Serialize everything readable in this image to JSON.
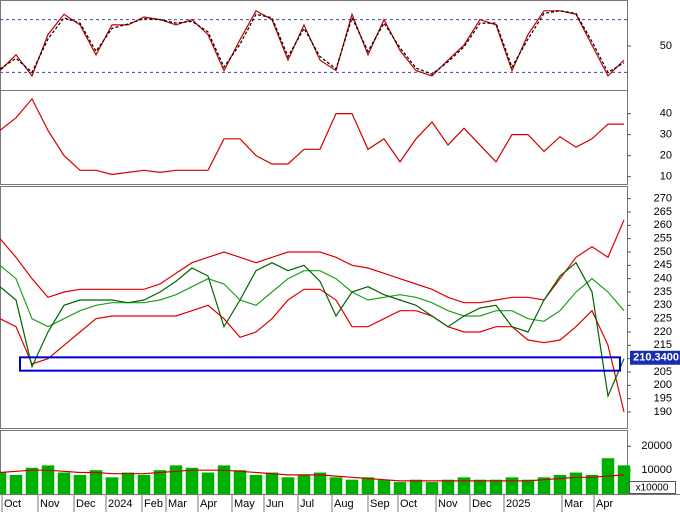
{
  "chart_data": [
    {
      "type": "line",
      "ylim": [
        0,
        100
      ],
      "yticks": [
        50
      ],
      "levels": [
        20,
        80
      ],
      "level_color": "#4444aa",
      "x": [
        0,
        4,
        8,
        12,
        16,
        20,
        24,
        28,
        32,
        36,
        40,
        44,
        48,
        52,
        56,
        60,
        64,
        68,
        72,
        76,
        80,
        84,
        88,
        92,
        96,
        100,
        104,
        108,
        112,
        116,
        120,
        124,
        128,
        132,
        136,
        140,
        144,
        148,
        152,
        156
      ],
      "series": [
        {
          "color": "#c00000",
          "values": [
            22,
            40,
            16,
            63,
            86,
            74,
            40,
            74,
            74,
            83,
            80,
            74,
            80,
            63,
            22,
            57,
            90,
            80,
            34,
            74,
            34,
            22,
            86,
            40,
            80,
            45,
            22,
            16,
            34,
            51,
            80,
            74,
            22,
            63,
            90,
            90,
            86,
            51,
            16,
            34
          ]
        },
        {
          "color": "#000000",
          "dash": true,
          "values": [
            24,
            36,
            20,
            58,
            82,
            76,
            44,
            70,
            75,
            81,
            80,
            76,
            78,
            66,
            26,
            52,
            86,
            82,
            38,
            70,
            38,
            24,
            82,
            44,
            76,
            48,
            25,
            18,
            32,
            49,
            76,
            76,
            26,
            58,
            87,
            90,
            87,
            55,
            20,
            31
          ]
        }
      ]
    },
    {
      "type": "line",
      "ylim": [
        6.5,
        50.3
      ],
      "yticks": [
        10,
        20,
        30,
        40
      ],
      "x": [
        0,
        4,
        8,
        12,
        16,
        20,
        24,
        28,
        32,
        36,
        40,
        44,
        48,
        52,
        56,
        60,
        64,
        68,
        72,
        76,
        80,
        84,
        88,
        92,
        96,
        100,
        104,
        108,
        112,
        116,
        120,
        124,
        128,
        132,
        136,
        140,
        144,
        148,
        152,
        156
      ],
      "series": [
        {
          "color": "#d00000",
          "values": [
            32,
            38,
            47,
            32,
            20,
            13,
            13,
            11,
            12,
            13,
            12,
            13,
            13,
            13,
            28,
            28,
            20,
            16,
            16,
            23,
            23,
            40,
            40,
            23,
            28,
            17,
            28,
            36,
            25,
            33,
            25,
            17,
            30,
            30,
            22,
            29,
            24,
            28,
            35,
            35
          ]
        }
      ]
    },
    {
      "type": "line",
      "ylim": [
        184,
        274
      ],
      "yticks": [
        190,
        195,
        200,
        205,
        210,
        215,
        220,
        225,
        230,
        235,
        240,
        245,
        250,
        255,
        260,
        265,
        270
      ],
      "x": [
        0,
        4,
        8,
        12,
        16,
        20,
        24,
        28,
        32,
        36,
        40,
        44,
        48,
        52,
        56,
        60,
        64,
        68,
        72,
        76,
        80,
        84,
        88,
        92,
        96,
        100,
        104,
        108,
        112,
        116,
        120,
        124,
        128,
        132,
        136,
        140,
        144,
        148,
        152,
        156
      ],
      "series": [
        {
          "color": "#e00000",
          "values": [
            255,
            248,
            240,
            233,
            235,
            236,
            236,
            236,
            236,
            236,
            238,
            242,
            246,
            248,
            250,
            248,
            246,
            248,
            250,
            250,
            250,
            248,
            245,
            244,
            242,
            240,
            238,
            236,
            233,
            231,
            231,
            232,
            233,
            233,
            232,
            240,
            248,
            252,
            248,
            262
          ]
        },
        {
          "color": "#e00000",
          "values": [
            225,
            222,
            208,
            210,
            215,
            220,
            225,
            226,
            226,
            226,
            226,
            226,
            228,
            230,
            225,
            218,
            220,
            225,
            232,
            236,
            236,
            232,
            222,
            222,
            225,
            228,
            228,
            226,
            222,
            220,
            220,
            222,
            222,
            217,
            216,
            217,
            222,
            228,
            215,
            190
          ]
        },
        {
          "color": "#1f9f1f",
          "values": [
            245,
            240,
            225,
            222,
            225,
            228,
            230,
            231,
            231,
            231,
            232,
            234,
            237,
            240,
            238,
            232,
            230,
            235,
            240,
            243,
            243,
            240,
            235,
            232,
            233,
            234,
            233,
            231,
            228,
            226,
            226,
            228,
            228,
            225,
            224,
            228,
            235,
            240,
            235,
            228
          ]
        },
        {
          "color": "#006400",
          "values": [
            237,
            232,
            207,
            220,
            230,
            232,
            232,
            232,
            231,
            232,
            235,
            239,
            244,
            241,
            222,
            232,
            243,
            246,
            243,
            245,
            239,
            226,
            235,
            237,
            234,
            232,
            230,
            226,
            222,
            226,
            229,
            230,
            222,
            220,
            232,
            241,
            246,
            235,
            196,
            210
          ]
        }
      ],
      "box": {
        "x": [
          5,
          155
        ],
        "y": [
          205.5,
          210.5
        ],
        "color": "#0000cc"
      },
      "last_price": {
        "value": 210.34,
        "label": "210.3400"
      }
    },
    {
      "type": "bar",
      "ylim": [
        0,
        26000
      ],
      "yticks": [
        10000,
        20000
      ],
      "unit": "x10000",
      "x": [
        0,
        4,
        8,
        12,
        16,
        20,
        24,
        28,
        32,
        36,
        40,
        44,
        48,
        52,
        56,
        60,
        64,
        68,
        72,
        76,
        80,
        84,
        88,
        92,
        96,
        100,
        104,
        108,
        112,
        116,
        120,
        124,
        128,
        132,
        136,
        140,
        144,
        148,
        152,
        156
      ],
      "series": [
        {
          "color": "#00b000",
          "values": [
            9000,
            8000,
            11000,
            12000,
            9000,
            8000,
            10000,
            7000,
            9000,
            8000,
            10000,
            12000,
            11000,
            9000,
            12000,
            10000,
            8000,
            9000,
            7000,
            8000,
            9000,
            7000,
            6000,
            7000,
            6000,
            5000,
            6000,
            5000,
            6000,
            7000,
            6000,
            6000,
            7000,
            6000,
            7000,
            8000,
            9000,
            8000,
            15000,
            12000
          ]
        },
        {
          "color": "#cc0000",
          "type": "line",
          "values": [
            9000,
            9500,
            10000,
            10000,
            9500,
            9000,
            9000,
            8500,
            8500,
            8500,
            9000,
            9500,
            10000,
            10000,
            10000,
            9500,
            9000,
            8500,
            8000,
            8000,
            8000,
            7500,
            7000,
            6500,
            6000,
            5500,
            5500,
            5500,
            5500,
            5500,
            5500,
            5500,
            5500,
            5500,
            6000,
            6500,
            7000,
            7000,
            7500,
            8000
          ]
        }
      ],
      "xlim": [
        0,
        156.75
      ],
      "xticks": [
        {
          "value": 0.5,
          "label": "Oct"
        },
        {
          "value": 9.5,
          "label": "Nov"
        },
        {
          "value": 18.5,
          "label": "Dec"
        },
        {
          "value": 26.5,
          "label": "2024"
        },
        {
          "value": 35.5,
          "label": "Feb"
        },
        {
          "value": 41.5,
          "label": "Mar"
        },
        {
          "value": 49.5,
          "label": "Apr"
        },
        {
          "value": 58,
          "label": "May"
        },
        {
          "value": 66,
          "label": "Jun"
        },
        {
          "value": 74.5,
          "label": "Jul"
        },
        {
          "value": 83,
          "label": "Aug"
        },
        {
          "value": 92,
          "label": "Sep"
        },
        {
          "value": 99.5,
          "label": "Oct"
        },
        {
          "value": 109,
          "label": "Nov"
        },
        {
          "value": 117.5,
          "label": "Dec"
        },
        {
          "value": 126,
          "label": "2025"
        },
        {
          "value": 140.5,
          "label": "Mar"
        },
        {
          "value": 148.5,
          "label": "Apr"
        }
      ]
    }
  ]
}
